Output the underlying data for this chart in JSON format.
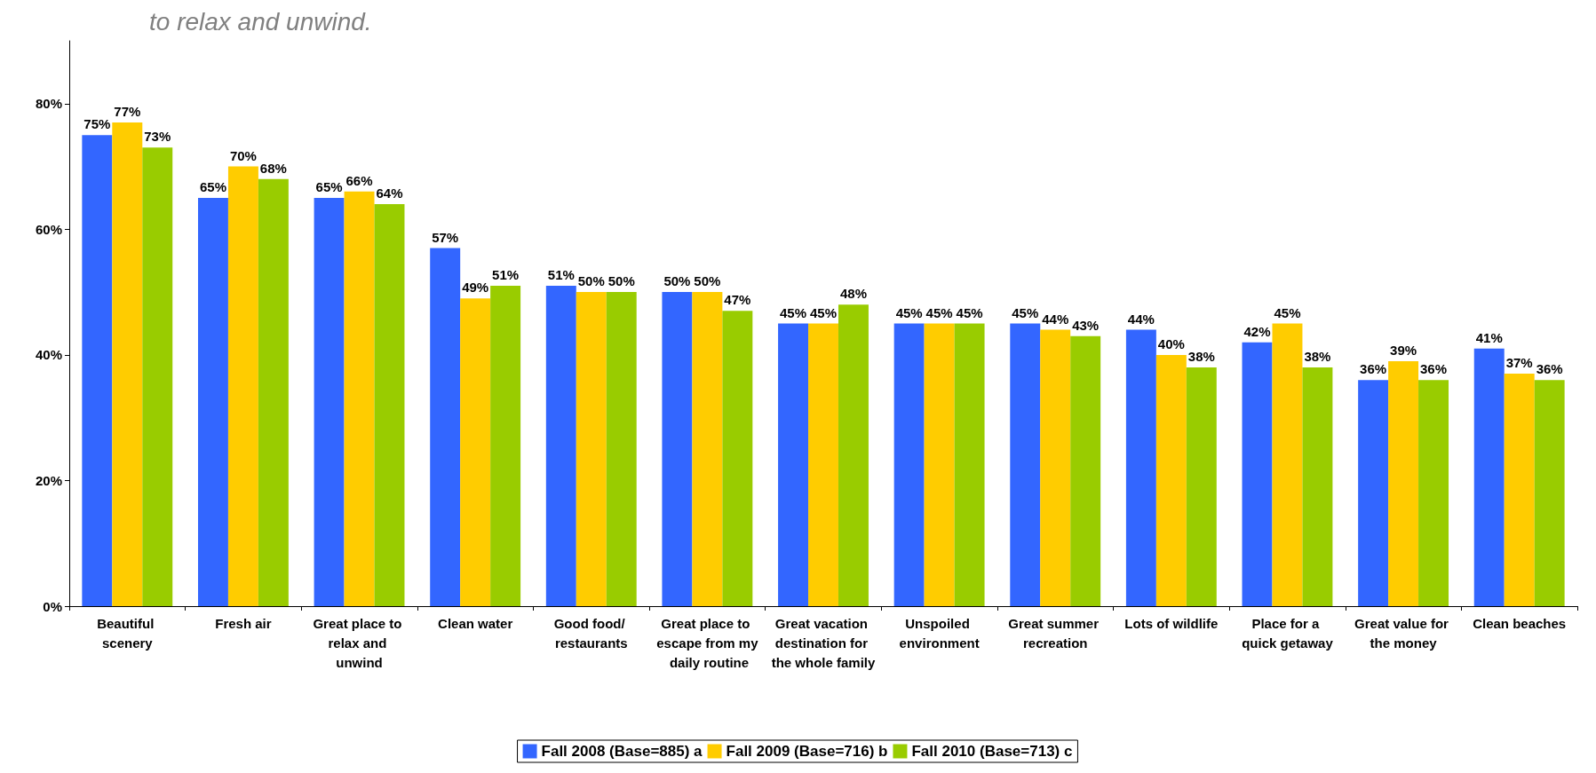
{
  "chart_data": {
    "type": "bar",
    "annotations": [
      "to relax and unwind."
    ],
    "categories": [
      "Beautiful scenery",
      "Fresh air",
      "Great place to relax and unwind",
      "Clean water",
      "Good food/ restaurants",
      "Great place to escape from my daily routine",
      "Great vacation destination for the whole family",
      "Unspoiled environment",
      "Great summer recreation",
      "Lots of wildlife",
      "Place for a quick getaway",
      "Great value for the money",
      "Clean beaches"
    ],
    "series": [
      {
        "name": "Fall 2008 (Base=885) a",
        "color": "#3366ff",
        "values": [
          75,
          65,
          65,
          57,
          51,
          50,
          45,
          45,
          45,
          44,
          42,
          36,
          41
        ],
        "value_labels": [
          "75%",
          "65%",
          "65%",
          "57%",
          "51%",
          "50%",
          "45%",
          "45%",
          "45%",
          "44%",
          "42%",
          "36%",
          "41%"
        ]
      },
      {
        "name": "Fall 2009 (Base=716) b",
        "color": "#ffcc00",
        "values": [
          77,
          70,
          66,
          49,
          50,
          50,
          45,
          45,
          44,
          40,
          45,
          39,
          37
        ],
        "value_labels": [
          "77%",
          "70%",
          "66%",
          "49%",
          "50%",
          "50%",
          "45%",
          "45%",
          "44%",
          "40%",
          "45%",
          "39%",
          "37%"
        ]
      },
      {
        "name": "Fall 2010 (Base=713) c",
        "color": "#99cc00",
        "values": [
          73,
          68,
          64,
          51,
          50,
          47,
          48,
          45,
          43,
          38,
          38,
          36,
          36
        ],
        "value_labels": [
          "73%",
          "68%",
          "64%",
          "51%",
          "50%",
          "47%",
          "48%",
          "45%",
          "43%",
          "38%",
          "38%",
          "36%",
          "36%"
        ]
      }
    ],
    "ylim": [
      0,
      90
    ],
    "yticks": [
      {
        "value": 0,
        "label": "0%"
      },
      {
        "value": 20,
        "label": "20%"
      },
      {
        "value": 40,
        "label": "40%"
      },
      {
        "value": 60,
        "label": "60%"
      },
      {
        "value": 80,
        "label": "80%"
      }
    ],
    "grid": false,
    "legend": "bottom"
  }
}
